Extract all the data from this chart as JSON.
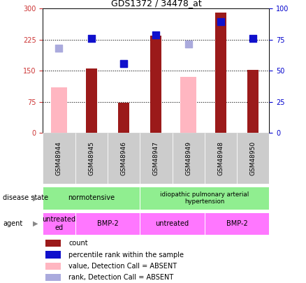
{
  "title": "GDS1372 / 34478_at",
  "samples": [
    "GSM48944",
    "GSM48945",
    "GSM48946",
    "GSM48947",
    "GSM48949",
    "GSM48948",
    "GSM48950"
  ],
  "count_values": [
    null,
    155,
    73,
    235,
    null,
    290,
    152
  ],
  "count_color": "#9B1A1A",
  "value_absent": [
    110,
    null,
    null,
    null,
    135,
    null,
    null
  ],
  "value_absent_color": "#FFB6C1",
  "rank_absent": [
    205,
    null,
    168,
    null,
    215,
    null,
    null
  ],
  "rank_absent_color": "#AAAADD",
  "percentile_values": [
    null,
    228,
    168,
    237,
    null,
    268,
    228
  ],
  "percentile_color": "#1010CC",
  "ylim_left": [
    0,
    300
  ],
  "ylim_right": [
    0,
    100
  ],
  "yticks_left": [
    0,
    75,
    150,
    225,
    300
  ],
  "yticks_right": [
    0,
    25,
    50,
    75,
    100
  ],
  "gridlines": [
    75,
    150,
    225
  ],
  "bar_width": 0.35,
  "dot_size": 55,
  "background_color": "#ffffff",
  "axis_color_left": "#CC3333",
  "axis_color_right": "#0000CC",
  "plot_bg": "#ffffff",
  "sample_box_color": "#CCCCCC",
  "disease_normotensive_color": "#90EE90",
  "disease_idiopathic_color": "#90EE90",
  "agent_color_untreated": "#FF77FF",
  "agent_color_bmp2": "#FF77FF",
  "legend_items": [
    {
      "label": "count",
      "color": "#9B1A1A"
    },
    {
      "label": "percentile rank within the sample",
      "color": "#1010CC"
    },
    {
      "label": "value, Detection Call = ABSENT",
      "color": "#FFB6C1"
    },
    {
      "label": "rank, Detection Call = ABSENT",
      "color": "#AAAADD"
    }
  ],
  "label_fontsize": 7,
  "tick_fontsize": 7,
  "title_fontsize": 9
}
